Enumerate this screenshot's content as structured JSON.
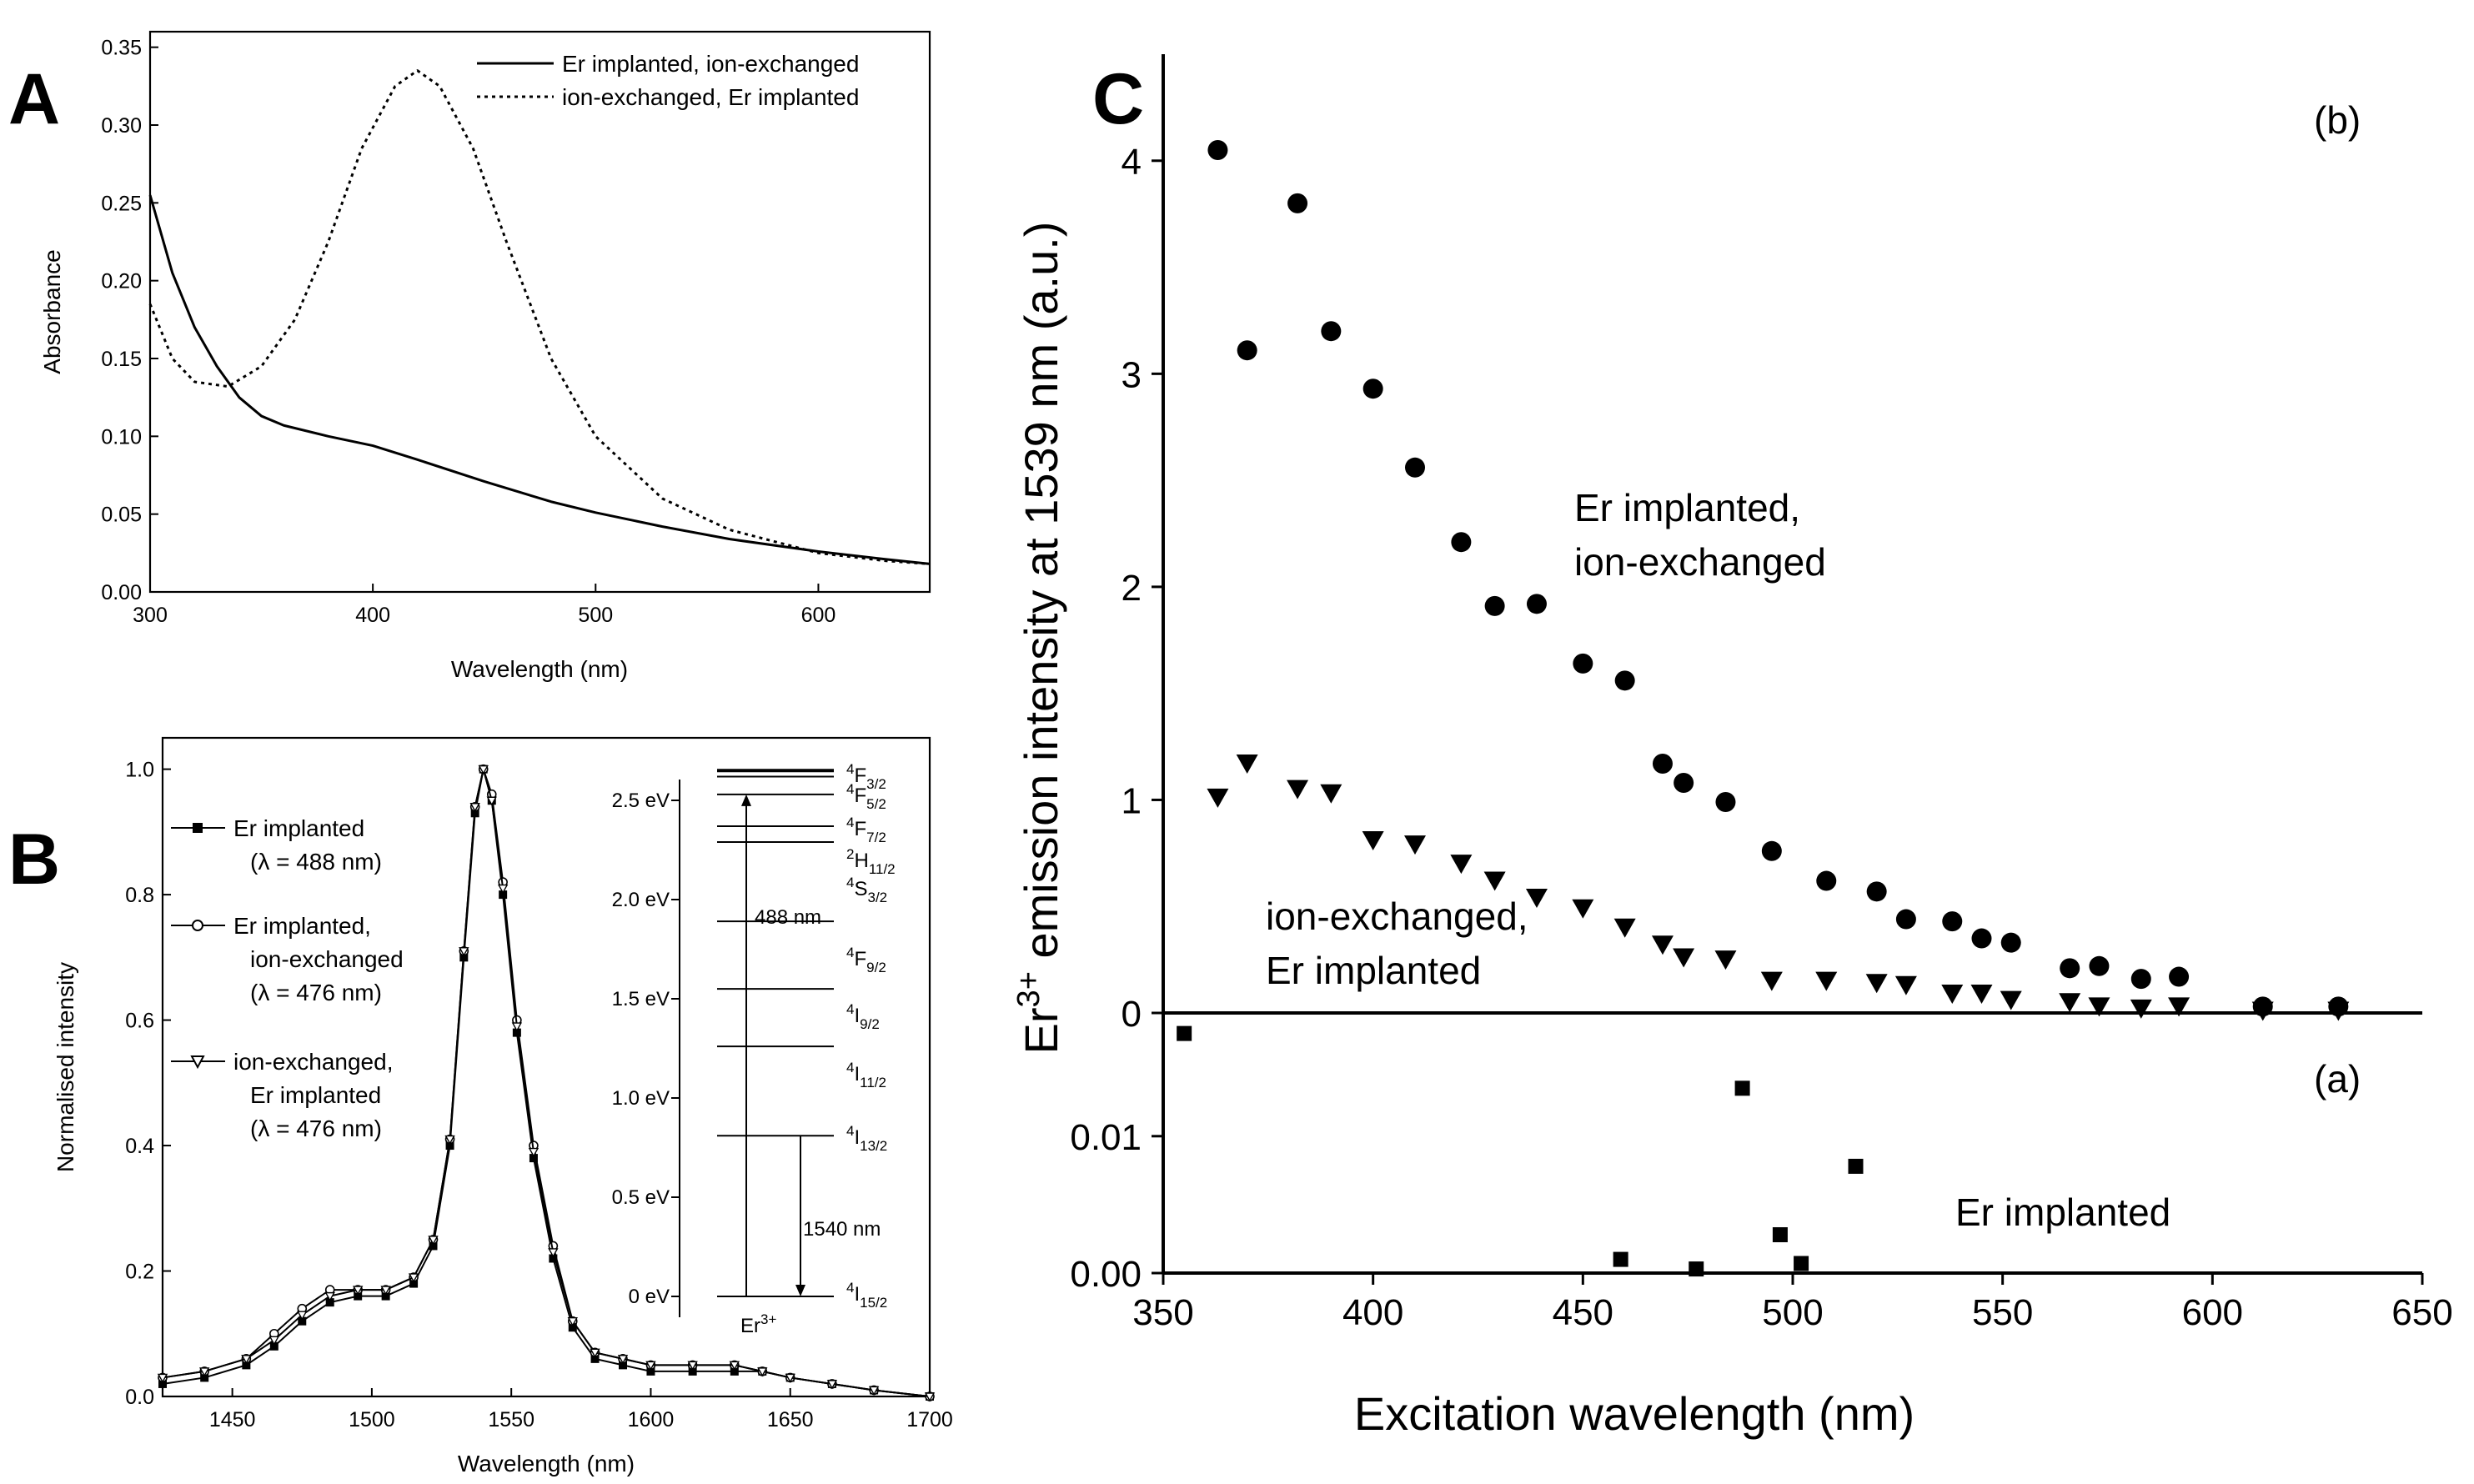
{
  "chart_data": [
    {
      "panel": "A",
      "type": "line",
      "xlabel": "Wavelength (nm)",
      "ylabel": "Absorbance",
      "xlim": [
        300,
        650
      ],
      "ylim": [
        0,
        0.36
      ],
      "xticks": [
        300,
        400,
        500,
        600
      ],
      "yticks": [
        "0.00",
        "0.05",
        "0.10",
        "0.15",
        "0.20",
        "0.25",
        "0.30",
        "0.35"
      ],
      "legend_position": "top-right",
      "series": [
        {
          "name": "Er implanted, ion-exchanged",
          "style": "solid",
          "x": [
            300,
            310,
            320,
            330,
            340,
            350,
            360,
            380,
            400,
            420,
            450,
            480,
            500,
            530,
            560,
            600,
            630,
            650
          ],
          "y": [
            0.255,
            0.205,
            0.17,
            0.145,
            0.125,
            0.113,
            0.107,
            0.1,
            0.094,
            0.085,
            0.071,
            0.058,
            0.051,
            0.042,
            0.034,
            0.026,
            0.021,
            0.018
          ]
        },
        {
          "name": "ion-exchanged, Er implanted",
          "style": "dotted",
          "x": [
            300,
            310,
            320,
            335,
            350,
            365,
            380,
            395,
            410,
            420,
            430,
            445,
            460,
            480,
            500,
            530,
            560,
            600,
            630,
            650
          ],
          "y": [
            0.185,
            0.15,
            0.135,
            0.132,
            0.145,
            0.175,
            0.225,
            0.285,
            0.325,
            0.335,
            0.325,
            0.285,
            0.225,
            0.15,
            0.1,
            0.06,
            0.04,
            0.025,
            0.02,
            0.018
          ]
        }
      ]
    },
    {
      "panel": "B",
      "type": "line",
      "xlabel": "Wavelength (nm)",
      "ylabel": "Normalised intensity",
      "xlim": [
        1425,
        1700
      ],
      "ylim": [
        0,
        1.05
      ],
      "xticks": [
        1450,
        1500,
        1550,
        1600,
        1650,
        1700
      ],
      "yticks": [
        "0.0",
        "0.2",
        "0.4",
        "0.6",
        "0.8",
        "1.0"
      ],
      "legend_position": "top-left",
      "legend": [
        {
          "name": "Er implanted",
          "sub": "(λ = 488 nm)",
          "marker": "square-filled"
        },
        {
          "name": "Er implanted,",
          "name2": "ion-exchanged",
          "sub": "(λ = 476 nm)",
          "marker": "circle-open"
        },
        {
          "name": "ion-exchanged,",
          "name2": "Er implanted",
          "sub": "(λ = 476 nm)",
          "marker": "triangle-open"
        }
      ],
      "series": [
        {
          "name": "Er implanted",
          "x": [
            1425,
            1440,
            1455,
            1465,
            1475,
            1485,
            1495,
            1505,
            1515,
            1522,
            1528,
            1533,
            1537,
            1540,
            1543,
            1547,
            1552,
            1558,
            1565,
            1572,
            1580,
            1590,
            1600,
            1615,
            1630,
            1640,
            1650,
            1665,
            1680,
            1700
          ],
          "y": [
            0.02,
            0.03,
            0.05,
            0.08,
            0.12,
            0.15,
            0.16,
            0.16,
            0.18,
            0.24,
            0.4,
            0.7,
            0.93,
            1.0,
            0.95,
            0.8,
            0.58,
            0.38,
            0.22,
            0.11,
            0.06,
            0.05,
            0.04,
            0.04,
            0.04,
            0.04,
            0.03,
            0.02,
            0.01,
            0.0
          ]
        },
        {
          "name": "Er implanted, ion-exchanged",
          "x": [
            1425,
            1440,
            1455,
            1465,
            1475,
            1485,
            1495,
            1505,
            1515,
            1522,
            1528,
            1533,
            1537,
            1540,
            1543,
            1547,
            1552,
            1558,
            1565,
            1572,
            1580,
            1590,
            1600,
            1615,
            1630,
            1640,
            1650,
            1665,
            1680,
            1700
          ],
          "y": [
            0.03,
            0.04,
            0.06,
            0.1,
            0.14,
            0.17,
            0.17,
            0.17,
            0.19,
            0.25,
            0.41,
            0.71,
            0.94,
            1.0,
            0.96,
            0.82,
            0.6,
            0.4,
            0.24,
            0.12,
            0.07,
            0.06,
            0.05,
            0.05,
            0.05,
            0.04,
            0.03,
            0.02,
            0.01,
            0.0
          ]
        },
        {
          "name": "ion-exchanged, Er implanted",
          "x": [
            1425,
            1440,
            1455,
            1465,
            1475,
            1485,
            1495,
            1505,
            1515,
            1522,
            1528,
            1533,
            1537,
            1540,
            1543,
            1547,
            1552,
            1558,
            1565,
            1572,
            1580,
            1590,
            1600,
            1615,
            1630,
            1640,
            1650,
            1665,
            1680,
            1700
          ],
          "y": [
            0.03,
            0.04,
            0.06,
            0.09,
            0.13,
            0.16,
            0.17,
            0.17,
            0.19,
            0.25,
            0.41,
            0.71,
            0.94,
            1.0,
            0.95,
            0.81,
            0.59,
            0.39,
            0.23,
            0.12,
            0.07,
            0.06,
            0.05,
            0.05,
            0.05,
            0.04,
            0.03,
            0.02,
            0.01,
            0.0
          ]
        }
      ],
      "inset": {
        "eV_ticks": [
          "0 eV",
          "0.5 eV",
          "1.0 eV",
          "1.5 eV",
          "2.0 eV",
          "2.5 eV"
        ],
        "levels": [
          {
            "name": "4F3/2",
            "base": "F",
            "sup": "4",
            "sub": "3/2",
            "eV": 2.65,
            "bold": true
          },
          {
            "name": "4F5/2",
            "base": "F",
            "sup": "4",
            "sub": "5/2",
            "eV": 2.62
          },
          {
            "name": "4F7/2",
            "base": "F",
            "sup": "4",
            "sub": "7/2",
            "eV": 2.53
          },
          {
            "name": "2H11/2",
            "base": "H",
            "sup": "2",
            "sub": "11/2",
            "eV": 2.37
          },
          {
            "name": "4S3/2",
            "base": "S",
            "sup": "4",
            "sub": "3/2",
            "eV": 2.29
          },
          {
            "name": "4F9/2",
            "base": "F",
            "sup": "4",
            "sub": "9/2",
            "eV": 1.89
          },
          {
            "name": "4I9/2",
            "base": "I",
            "sup": "4",
            "sub": "9/2",
            "eV": 1.55
          },
          {
            "name": "4I11/2",
            "base": "I",
            "sup": "4",
            "sub": "11/2",
            "eV": 1.26
          },
          {
            "name": "4I13/2",
            "base": "I",
            "sup": "4",
            "sub": "13/2",
            "eV": 0.81
          },
          {
            "name": "4I15/2",
            "base": "I",
            "sup": "4",
            "sub": "15/2",
            "eV": 0.0
          }
        ],
        "excitation_label": "488 nm",
        "emission_label": "1540 nm",
        "ion_label": "Er",
        "ion_charge": "3+"
      }
    },
    {
      "panel": "C",
      "type": "scatter",
      "xlabel": "Excitation wavelength (nm)",
      "ylabel_prefix": "Er",
      "ylabel_sup": "3+",
      "ylabel_suffix": " emission intensity at 1539 nm (a.u.)",
      "xlim": [
        350,
        650
      ],
      "xticks": [
        350,
        400,
        450,
        500,
        550,
        600,
        650
      ],
      "upper": {
        "tag": "(b)",
        "ylim": [
          0,
          4.5
        ],
        "yticks": [
          "0",
          "1",
          "2",
          "3",
          "4"
        ],
        "series": [
          {
            "name": "Er implanted,",
            "name2": "ion-exchanged",
            "marker": "circle",
            "x": [
              363,
              370,
              382,
              390,
              400,
              410,
              421,
              429,
              439,
              450,
              460,
              469,
              474,
              484,
              495,
              508,
              520,
              527,
              538,
              545,
              552,
              566,
              573,
              583,
              592,
              612,
              630
            ],
            "y": [
              4.05,
              3.11,
              3.8,
              3.2,
              2.93,
              2.56,
              2.21,
              1.91,
              1.92,
              1.64,
              1.56,
              1.17,
              1.08,
              0.99,
              0.76,
              0.62,
              0.57,
              0.44,
              0.43,
              0.35,
              0.33,
              0.21,
              0.22,
              0.16,
              0.17,
              0.03,
              0.03
            ]
          },
          {
            "name": "ion-exchanged,",
            "name2": "Er implanted",
            "marker": "triangle-down",
            "x": [
              363,
              370,
              382,
              390,
              400,
              410,
              421,
              429,
              439,
              450,
              460,
              469,
              474,
              484,
              495,
              508,
              520,
              527,
              538,
              545,
              552,
              566,
              573,
              583,
              592,
              612,
              630
            ],
            "y": [
              1.01,
              1.17,
              1.05,
              1.03,
              0.81,
              0.79,
              0.7,
              0.62,
              0.54,
              0.49,
              0.4,
              0.32,
              0.26,
              0.25,
              0.15,
              0.15,
              0.14,
              0.13,
              0.09,
              0.09,
              0.06,
              0.05,
              0.03,
              0.02,
              0.03,
              0.01,
              0.01
            ]
          }
        ]
      },
      "lower": {
        "tag": "(a)",
        "ylim": [
          0,
          0.019
        ],
        "yticks": [
          "0.00",
          "0.01"
        ],
        "series": [
          {
            "name": "Er implanted",
            "marker": "square",
            "x": [
              355,
              459,
              477,
              488,
              497,
              502,
              515
            ],
            "y": [
              0.0175,
              0.001,
              0.0003,
              0.0135,
              0.0028,
              0.0007,
              0.0078
            ]
          }
        ]
      }
    }
  ]
}
